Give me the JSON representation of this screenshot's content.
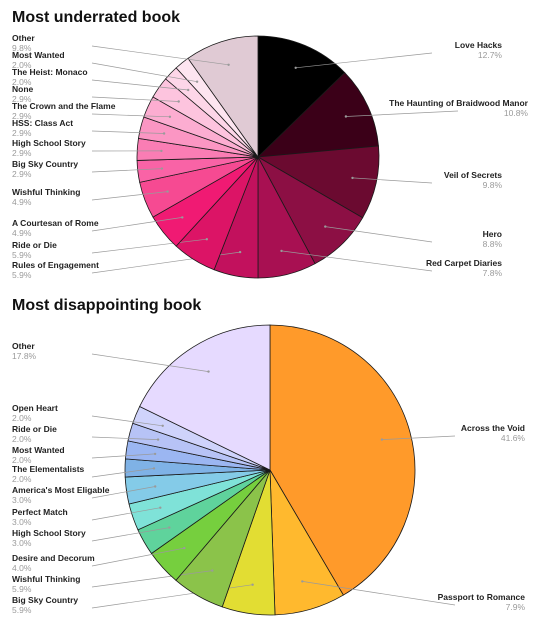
{
  "chart_data": [
    {
      "type": "pie",
      "title": "Most underrated book",
      "slices": [
        {
          "label": "Love Hacks",
          "value": 12.7,
          "display": "12.7%",
          "color": "#000000"
        },
        {
          "label": "The Haunting of Braidwood Manor",
          "value": 10.8,
          "display": "10.8%",
          "color": "#3b0018"
        },
        {
          "label": "Veil of Secrets",
          "value": 9.8,
          "display": "9.8%",
          "color": "#6b0a30"
        },
        {
          "label": "Hero",
          "value": 8.8,
          "display": "8.8%",
          "color": "#8c0f44"
        },
        {
          "label": "Red Carpet Diaries",
          "value": 7.8,
          "display": "7.8%",
          "color": "#a81052"
        },
        {
          "label": "Rules of Engagement",
          "value": 5.9,
          "display": "5.9%",
          "color": "#c2115d"
        },
        {
          "label": "Ride or Die",
          "value": 5.9,
          "display": "5.9%",
          "color": "#dc1466"
        },
        {
          "label": "A Courtesan of Rome",
          "value": 4.9,
          "display": "4.9%",
          "color": "#f01a73"
        },
        {
          "label": "Wishful Thinking",
          "value": 4.9,
          "display": "4.9%",
          "color": "#f64a92"
        },
        {
          "label": "Big Sky Country",
          "value": 2.9,
          "display": "2.9%",
          "color": "#f963a6"
        },
        {
          "label": "High School Story",
          "value": 2.9,
          "display": "2.9%",
          "color": "#fa7db4"
        },
        {
          "label": "HSS: Class Act",
          "value": 2.9,
          "display": "2.9%",
          "color": "#fb96c3"
        },
        {
          "label": "The Crown and the Flame",
          "value": 2.9,
          "display": "2.9%",
          "color": "#fcadd1"
        },
        {
          "label": "None",
          "value": 2.9,
          "display": "2.9%",
          "color": "#fdc4de"
        },
        {
          "label": "The Heist: Monaco",
          "value": 2.0,
          "display": "2.0%",
          "color": "#fdd6e8"
        },
        {
          "label": "Most Wanted",
          "value": 2.0,
          "display": "2.0%",
          "color": "#fde5f0"
        },
        {
          "label": "Other",
          "value": 9.8,
          "display": "9.8%",
          "color": "#e0cad4"
        }
      ]
    },
    {
      "type": "pie",
      "title": "Most disappointing book",
      "slices": [
        {
          "label": "Across the Void",
          "value": 41.6,
          "display": "41.6%",
          "color": "#ff9a2a"
        },
        {
          "label": "Passport to Romance",
          "value": 7.9,
          "display": "7.9%",
          "color": "#ffb92e"
        },
        {
          "label": "Big Sky Country",
          "value": 5.9,
          "display": "5.9%",
          "color": "#e2dd33"
        },
        {
          "label": "Wishful Thinking",
          "value": 5.9,
          "display": "5.9%",
          "color": "#8bc34a"
        },
        {
          "label": "Desire and Decorum",
          "value": 4.0,
          "display": "4.0%",
          "color": "#76cf3e"
        },
        {
          "label": "High School Story",
          "value": 3.0,
          "display": "3.0%",
          "color": "#5fd39c"
        },
        {
          "label": "Perfect Match",
          "value": 3.0,
          "display": "3.0%",
          "color": "#7fe2d8"
        },
        {
          "label": "America's Most Eligable",
          "value": 3.0,
          "display": "3.0%",
          "color": "#84cbe8"
        },
        {
          "label": "The Elementalists",
          "value": 2.0,
          "display": "2.0%",
          "color": "#7fb2e6"
        },
        {
          "label": "Most Wanted",
          "value": 2.0,
          "display": "2.0%",
          "color": "#9bb6f2"
        },
        {
          "label": "Ride or Die",
          "value": 2.0,
          "display": "2.0%",
          "color": "#b7c3f6"
        },
        {
          "label": "Open Heart",
          "value": 2.0,
          "display": "2.0%",
          "color": "#cfd3fb"
        },
        {
          "label": "Other",
          "value": 17.8,
          "display": "17.8%",
          "color": "#e6daff"
        }
      ]
    }
  ]
}
